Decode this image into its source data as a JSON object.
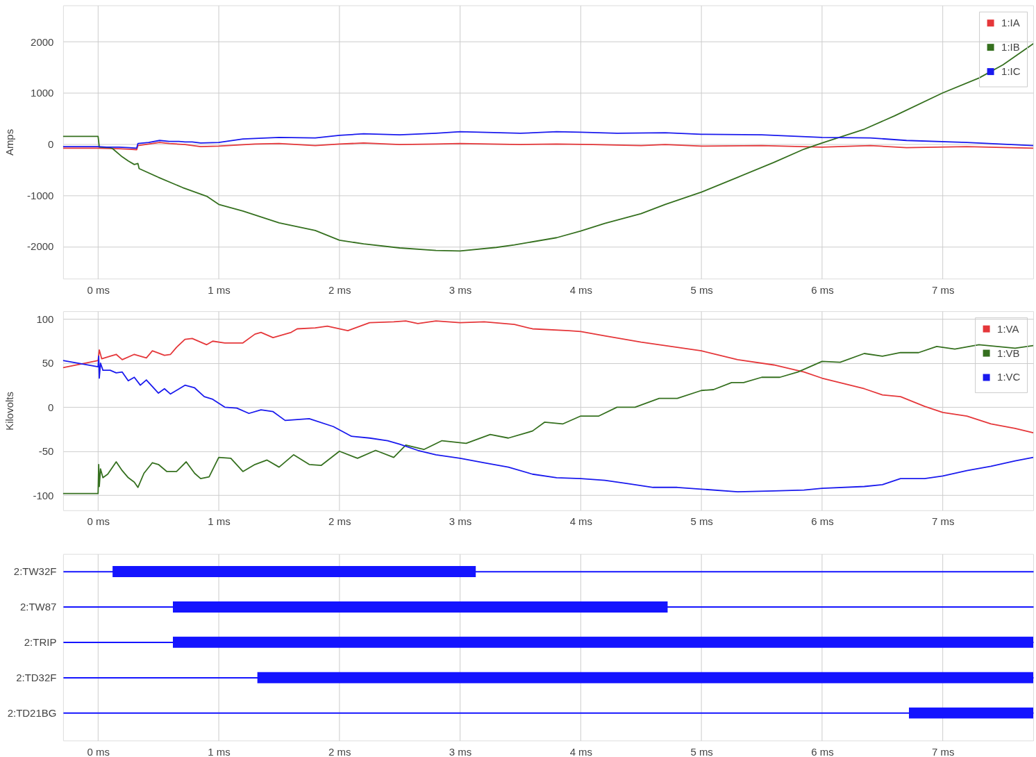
{
  "chart_data": [
    {
      "type": "line",
      "ylabel": "Amps",
      "xlim": [
        -0.29,
        7.75
      ],
      "xticks": [
        {
          "value": 0,
          "label": "0 ms"
        },
        {
          "value": 1,
          "label": "1 ms"
        },
        {
          "value": 2,
          "label": "2 ms"
        },
        {
          "value": 3,
          "label": "3 ms"
        },
        {
          "value": 4,
          "label": "4 ms"
        },
        {
          "value": 5,
          "label": "5 ms"
        },
        {
          "value": 6,
          "label": "6 ms"
        },
        {
          "value": 7,
          "label": "7 ms"
        }
      ],
      "ylim": [
        -2630,
        2710
      ],
      "yticks": [
        -2000,
        -1000,
        0,
        1000,
        2000
      ],
      "grid": true,
      "legend": "top right",
      "line_style": "solid",
      "series": [
        {
          "name": "1:IA",
          "color": "#e5373a",
          "x": [
            -0.29,
            0,
            0.17,
            0.26,
            0.32,
            0.33,
            0.42,
            0.51,
            0.59,
            0.72,
            0.85,
            1.0,
            1.15,
            1.3,
            1.5,
            1.8,
            2.0,
            2.2,
            2.5,
            2.8,
            3.0,
            3.5,
            3.8,
            4.1,
            4.5,
            4.7,
            5.0,
            5.5,
            6.0,
            6.4,
            6.7,
            7.2,
            7.75
          ],
          "values": [
            -80,
            -80,
            -90,
            -100,
            -110,
            -30,
            0,
            30,
            10,
            -10,
            -50,
            -40,
            -20,
            0,
            10,
            -30,
            0,
            20,
            -10,
            0,
            10,
            -10,
            0,
            -10,
            -30,
            -10,
            -40,
            -30,
            -60,
            -30,
            -70,
            -50,
            -80
          ]
        },
        {
          "name": "1:IB",
          "color": "#35701f",
          "x": [
            -0.29,
            0,
            0.01,
            0.1,
            0.12,
            0.2,
            0.25,
            0.3,
            0.33,
            0.34,
            0.5,
            0.7,
            0.9,
            1.0,
            1.2,
            1.5,
            1.8,
            2.0,
            2.2,
            2.5,
            2.8,
            3.0,
            3.3,
            3.45,
            3.8,
            4.0,
            4.2,
            4.5,
            4.7,
            5.0,
            5.3,
            5.6,
            5.85,
            6.0,
            6.35,
            6.6,
            7.0,
            7.3,
            7.5,
            7.75
          ],
          "values": [
            150,
            150,
            -60,
            -70,
            -90,
            -250,
            -330,
            -400,
            -380,
            -480,
            -650,
            -850,
            -1020,
            -1180,
            -1310,
            -1540,
            -1690,
            -1880,
            -1950,
            -2030,
            -2080,
            -2090,
            -2020,
            -1970,
            -1830,
            -1700,
            -1550,
            -1360,
            -1180,
            -940,
            -650,
            -360,
            -100,
            20,
            290,
            550,
            1000,
            1290,
            1550,
            1960
          ]
        },
        {
          "name": "1:IC",
          "color": "#1a1aee",
          "x": [
            -0.29,
            0,
            0.07,
            0.17,
            0.26,
            0.32,
            0.33,
            0.42,
            0.51,
            0.59,
            0.67,
            0.72,
            0.78,
            0.85,
            1.0,
            1.2,
            1.5,
            1.8,
            2.0,
            2.2,
            2.5,
            2.8,
            3.0,
            3.5,
            3.8,
            4.0,
            4.3,
            4.7,
            5.0,
            5.5,
            6.0,
            6.4,
            6.7,
            7.2,
            7.75
          ],
          "values": [
            -50,
            -50,
            -60,
            -60,
            -70,
            -80,
            10,
            30,
            70,
            50,
            50,
            40,
            40,
            20,
            30,
            100,
            130,
            120,
            170,
            200,
            180,
            210,
            240,
            210,
            240,
            230,
            210,
            220,
            190,
            180,
            130,
            120,
            70,
            30,
            -30
          ]
        }
      ]
    },
    {
      "type": "line",
      "ylabel": "Kilovolts",
      "xlim": [
        -0.29,
        7.75
      ],
      "xticks": [
        {
          "value": 0,
          "label": "0 ms"
        },
        {
          "value": 1,
          "label": "1 ms"
        },
        {
          "value": 2,
          "label": "2 ms"
        },
        {
          "value": 3,
          "label": "3 ms"
        },
        {
          "value": 4,
          "label": "4 ms"
        },
        {
          "value": 5,
          "label": "5 ms"
        },
        {
          "value": 6,
          "label": "6 ms"
        },
        {
          "value": 7,
          "label": "7 ms"
        }
      ],
      "ylim": [
        -117,
        109
      ],
      "yticks": [
        -100,
        -50,
        0,
        50,
        100
      ],
      "grid": true,
      "legend": "top right",
      "line_style": "solid",
      "series": [
        {
          "name": "1:VA",
          "color": "#e5373a",
          "x": [
            -0.29,
            0,
            0.01,
            0.03,
            0.1,
            0.15,
            0.2,
            0.3,
            0.4,
            0.45,
            0.55,
            0.6,
            0.65,
            0.72,
            0.78,
            0.9,
            0.95,
            1.05,
            1.2,
            1.3,
            1.35,
            1.45,
            1.6,
            1.65,
            1.8,
            1.9,
            2.07,
            2.25,
            2.45,
            2.55,
            2.65,
            2.8,
            3.0,
            3.2,
            3.45,
            3.6,
            3.9,
            4.0,
            4.2,
            4.5,
            4.8,
            5.0,
            5.3,
            5.6,
            5.85,
            6.0,
            6.35,
            6.5,
            6.65,
            6.85,
            7.0,
            7.2,
            7.4,
            7.6,
            7.75
          ],
          "values": [
            45,
            53,
            65,
            55,
            58,
            60,
            54,
            60,
            56,
            64,
            59,
            60,
            68,
            77,
            78,
            71,
            75,
            73,
            73,
            83,
            85,
            79,
            85,
            89,
            90,
            92,
            87,
            96,
            97,
            98,
            95,
            98,
            96,
            97,
            94,
            89,
            87,
            86,
            81,
            74,
            68,
            64,
            54,
            48,
            40,
            33,
            21,
            14,
            12,
            1,
            -6,
            -10,
            -19,
            -24,
            -29
          ]
        },
        {
          "name": "1:VB",
          "color": "#35701f",
          "x": [
            -0.29,
            0,
            0.005,
            0.01,
            0.02,
            0.04,
            0.08,
            0.15,
            0.2,
            0.25,
            0.3,
            0.33,
            0.38,
            0.45,
            0.5,
            0.57,
            0.65,
            0.73,
            0.8,
            0.85,
            0.92,
            1.0,
            1.1,
            1.2,
            1.3,
            1.4,
            1.5,
            1.62,
            1.75,
            1.85,
            2.0,
            2.15,
            2.3,
            2.45,
            2.55,
            2.7,
            2.85,
            3.05,
            3.25,
            3.4,
            3.6,
            3.7,
            3.85,
            4.0,
            4.15,
            4.3,
            4.45,
            4.65,
            4.8,
            5.0,
            5.1,
            5.25,
            5.35,
            5.5,
            5.65,
            5.8,
            6.0,
            6.15,
            6.35,
            6.5,
            6.65,
            6.8,
            6.95,
            7.1,
            7.3,
            7.45,
            7.6,
            7.75
          ],
          "values": [
            -98,
            -98,
            -65,
            -90,
            -70,
            -80,
            -76,
            -62,
            -72,
            -80,
            -85,
            -91,
            -75,
            -63,
            -65,
            -73,
            -73,
            -62,
            -75,
            -81,
            -79,
            -57,
            -58,
            -73,
            -65,
            -60,
            -68,
            -54,
            -65,
            -66,
            -50,
            -58,
            -49,
            -57,
            -43,
            -48,
            -38,
            -41,
            -31,
            -35,
            -27,
            -17,
            -19,
            -10,
            -10,
            0,
            0,
            10,
            10,
            19,
            20,
            28,
            28,
            34,
            34,
            40,
            52,
            51,
            61,
            58,
            62,
            62,
            69,
            66,
            71,
            69,
            67,
            70
          ]
        },
        {
          "name": "1:VC",
          "color": "#1a1aee",
          "x": [
            -0.29,
            0,
            0.005,
            0.01,
            0.02,
            0.04,
            0.1,
            0.15,
            0.2,
            0.25,
            0.3,
            0.35,
            0.4,
            0.5,
            0.55,
            0.6,
            0.72,
            0.8,
            0.88,
            0.95,
            1.05,
            1.15,
            1.25,
            1.35,
            1.45,
            1.55,
            1.75,
            1.95,
            2.1,
            2.25,
            2.4,
            2.5,
            2.65,
            2.8,
            3.0,
            3.2,
            3.4,
            3.6,
            3.8,
            4.0,
            4.2,
            4.4,
            4.6,
            4.8,
            5.0,
            5.3,
            5.6,
            5.85,
            6.0,
            6.35,
            6.5,
            6.65,
            6.85,
            7.0,
            7.2,
            7.4,
            7.6,
            7.75
          ],
          "values": [
            53,
            46,
            58,
            33,
            50,
            42,
            42,
            39,
            40,
            30,
            34,
            25,
            31,
            16,
            21,
            15,
            25,
            22,
            12,
            9,
            0,
            -1,
            -7,
            -3,
            -5,
            -15,
            -13,
            -22,
            -33,
            -35,
            -38,
            -42,
            -49,
            -54,
            -58,
            -63,
            -68,
            -76,
            -80,
            -81,
            -83,
            -87,
            -91,
            -91,
            -93,
            -96,
            -95,
            -94,
            -92,
            -90,
            -88,
            -81,
            -81,
            -78,
            -72,
            -67,
            -61,
            -57
          ]
        }
      ]
    },
    {
      "type": "bar",
      "orientation": "horizontal",
      "categories": [
        "2:TW32F",
        "2:TW87",
        "2:TRIP",
        "2:TD32F",
        "2:TD21BG"
      ],
      "base": [
        0.12,
        0.62,
        0.62,
        1.32,
        6.72
      ],
      "values": [
        3.01,
        4.1,
        7.13,
        6.43,
        1.03
      ],
      "color": "#1414ff",
      "xlim": [
        -0.29,
        7.75
      ],
      "xticks": [
        {
          "value": 0,
          "label": "0 ms"
        },
        {
          "value": 1,
          "label": "1 ms"
        },
        {
          "value": 2,
          "label": "2 ms"
        },
        {
          "value": 3,
          "label": "3 ms"
        },
        {
          "value": 4,
          "label": "4 ms"
        },
        {
          "value": 5,
          "label": "5 ms"
        },
        {
          "value": 6,
          "label": "6 ms"
        },
        {
          "value": 7,
          "label": "7 ms"
        }
      ],
      "grid": true
    }
  ]
}
